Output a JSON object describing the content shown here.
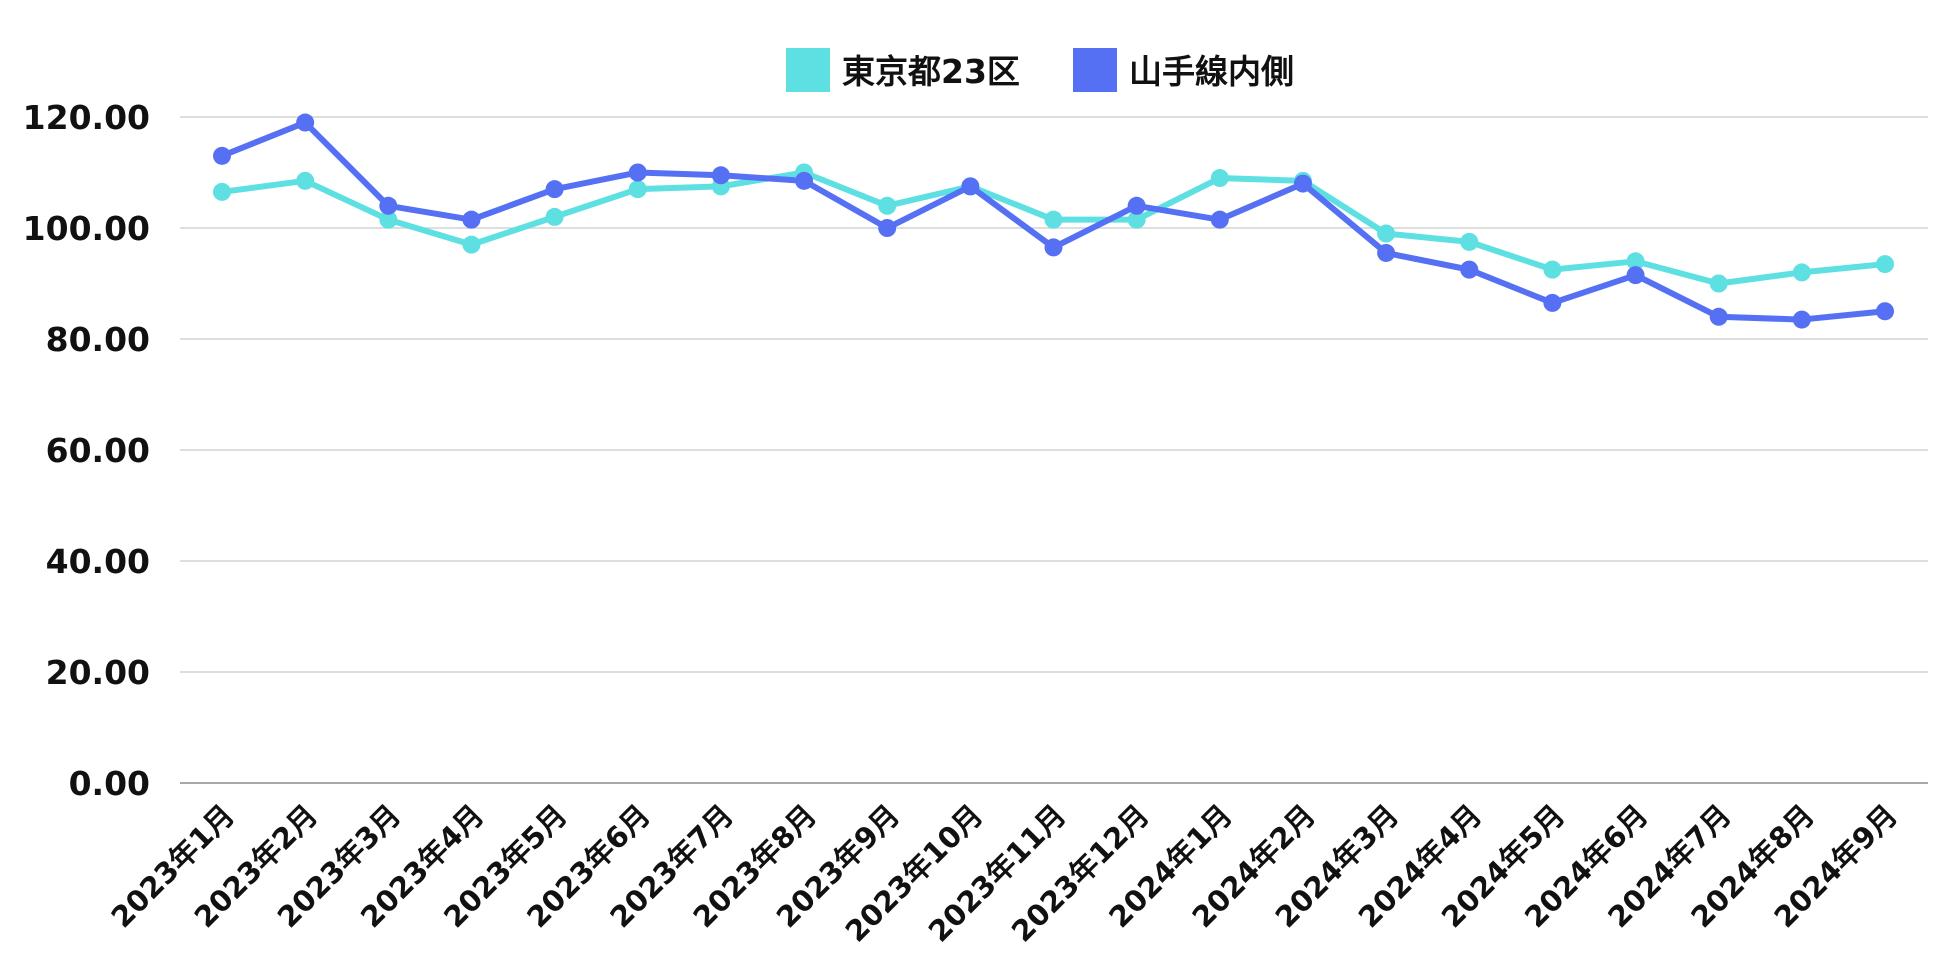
{
  "chart_data": {
    "type": "line",
    "title": "",
    "xlabel": "",
    "ylabel": "",
    "ylim": [
      0,
      120
    ],
    "y_ticks": [
      "0.00",
      "20.00",
      "40.00",
      "60.00",
      "80.00",
      "100.00",
      "120.00"
    ],
    "grid": true,
    "legend_position": "top-center",
    "categories": [
      "2023年1月",
      "2023年2月",
      "2023年3月",
      "2023年4月",
      "2023年5月",
      "2023年6月",
      "2023年7月",
      "2023年8月",
      "2023年9月",
      "2023年10月",
      "2023年11月",
      "2023年12月",
      "2024年1月",
      "2024年2月",
      "2024年3月",
      "2024年4月",
      "2024年5月",
      "2024年6月",
      "2024年7月",
      "2024年8月",
      "2024年9月"
    ],
    "series": [
      {
        "name": "東京都23区",
        "color": "#5ee0e2",
        "values": [
          106.5,
          108.5,
          101.5,
          97,
          102,
          107,
          107.5,
          110,
          104,
          107.5,
          101.5,
          101.5,
          109,
          108.5,
          99,
          97.5,
          92.5,
          94,
          90,
          92,
          93.5
        ]
      },
      {
        "name": "山手線内側",
        "color": "#5670f3",
        "values": [
          113,
          119,
          104,
          101.5,
          107,
          110,
          109.5,
          108.5,
          100,
          107.5,
          96.5,
          104,
          101.5,
          108,
          95.5,
          92.5,
          86.5,
          91.5,
          84,
          83.5,
          85
        ]
      }
    ]
  }
}
